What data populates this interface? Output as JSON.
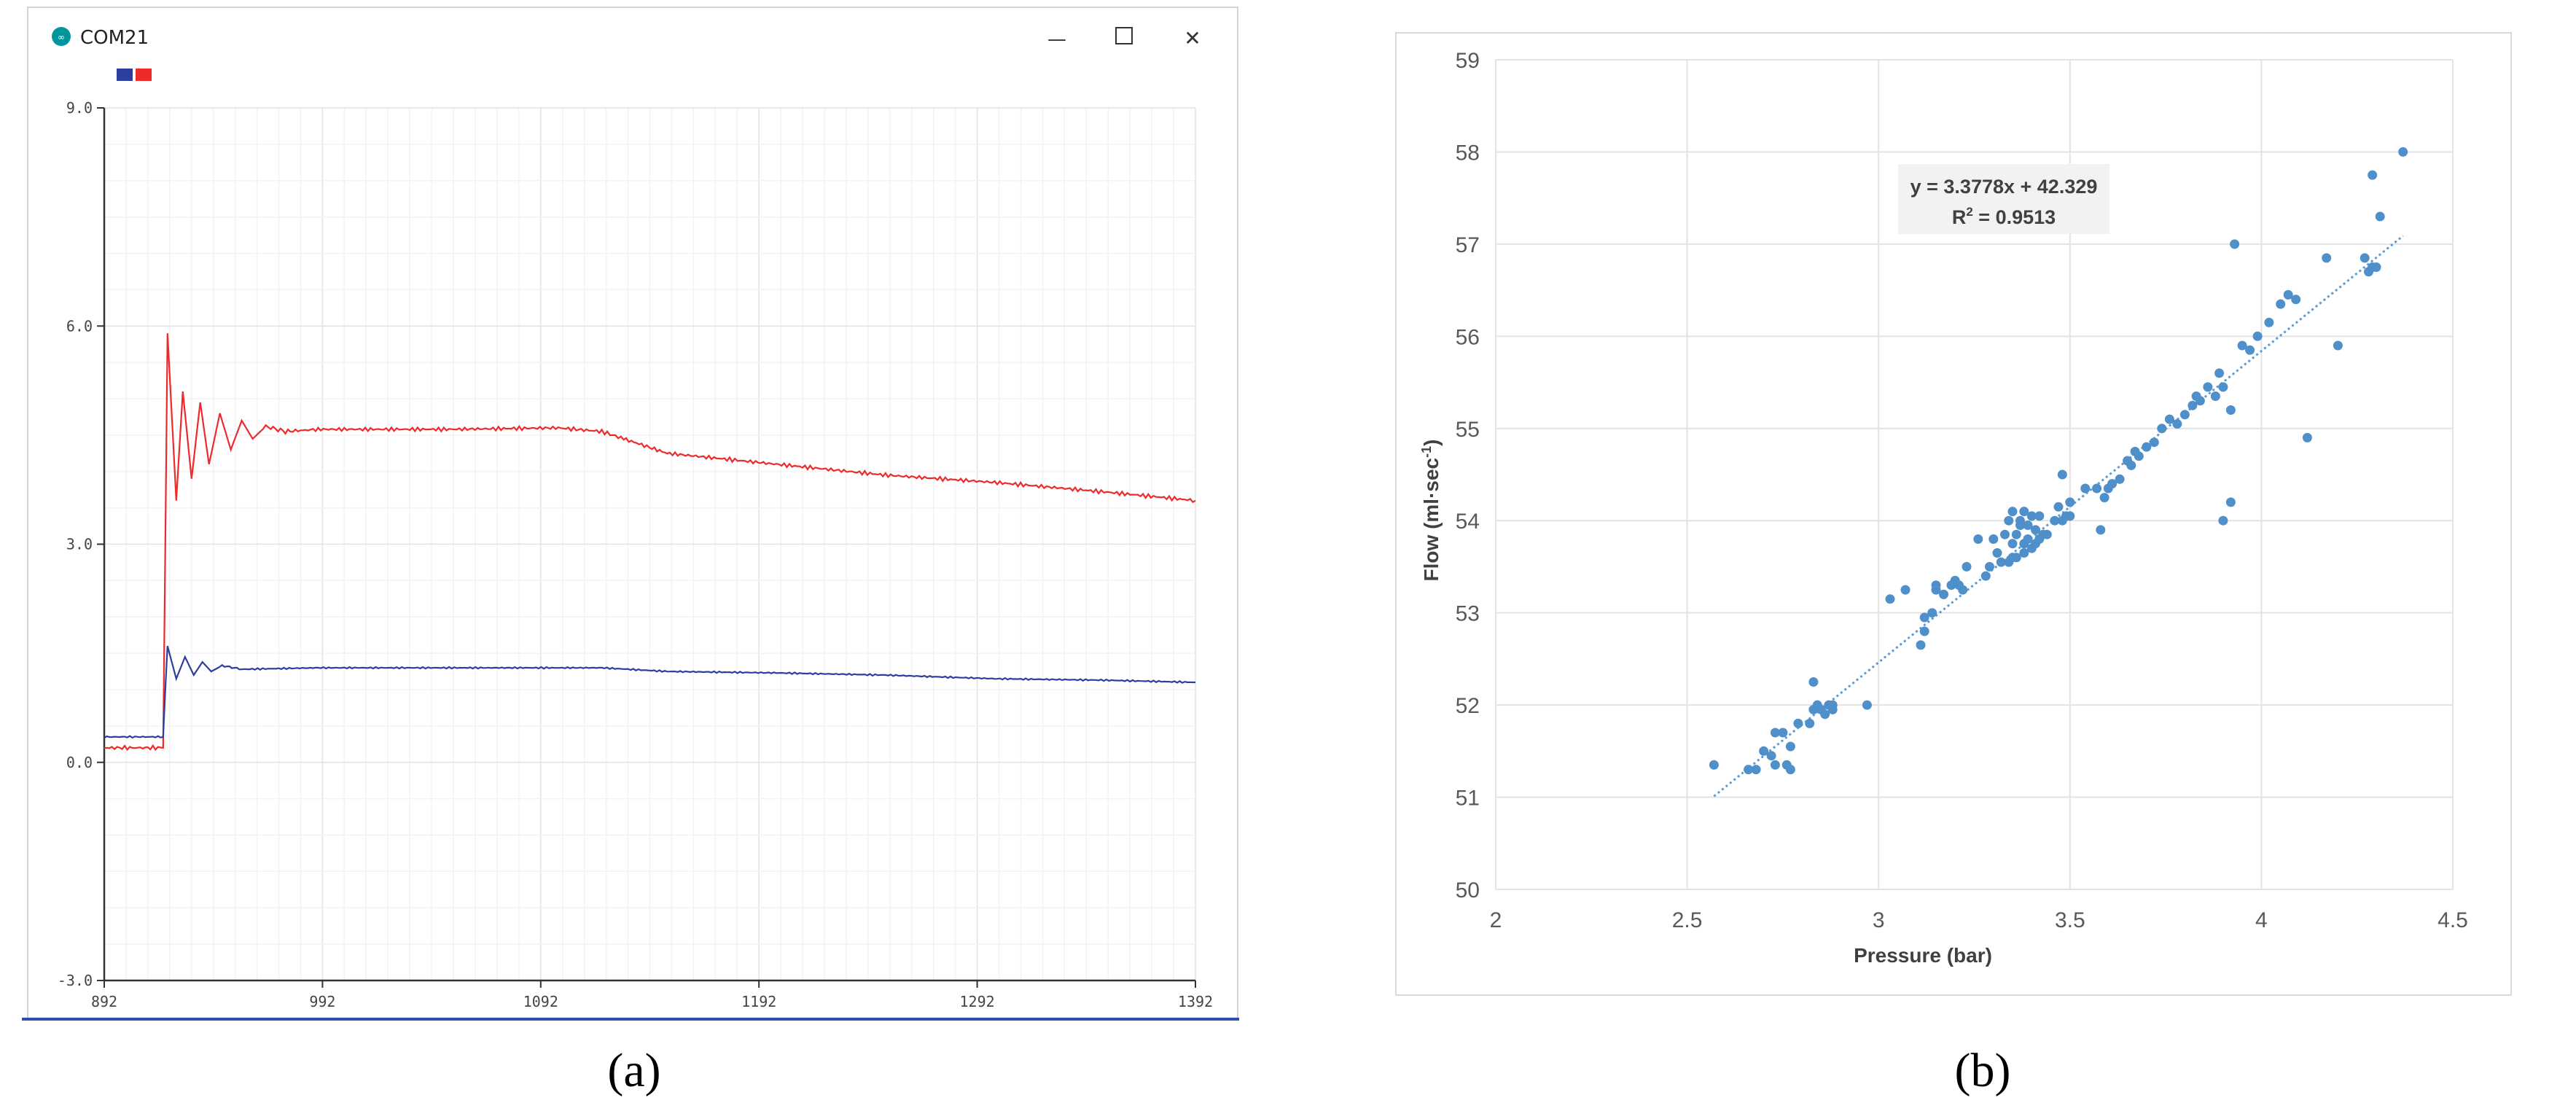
{
  "panel_a": {
    "window_title": "COM21",
    "icon_name": "arduino-logo-icon",
    "controls": {
      "minimize": "—",
      "maximize": "☐",
      "close": "✕"
    },
    "legend_colors": [
      "#2e3e9e",
      "#ee2a2a"
    ],
    "caption": "(a)"
  },
  "panel_b": {
    "caption": "(b)",
    "equation": "y = 3.3778x + 42.329",
    "r2_prefix": "R",
    "r2_sup": "2",
    "r2_value": " = 0.9513"
  },
  "chart_data": [
    {
      "type": "line",
      "title": "",
      "xlabel": "",
      "ylabel": "",
      "xlim": [
        892,
        1392
      ],
      "ylim": [
        -3.0,
        9.0
      ],
      "x_ticks": [
        "892",
        "992",
        "1092",
        "1192",
        "1292",
        "1392"
      ],
      "y_ticks": [
        "-3.0",
        "0.0",
        "3.0",
        "6.0",
        "9.0"
      ],
      "grid": true,
      "legend": "top-left",
      "series": [
        {
          "color": "#ee2a2a",
          "points": [
            [
              892,
              0.2
            ],
            [
              919,
              0.2
            ],
            [
              920,
              3.0
            ],
            [
              921,
              5.9
            ],
            [
              925,
              3.6
            ],
            [
              928,
              5.1
            ],
            [
              932,
              3.9
            ],
            [
              936,
              4.95
            ],
            [
              940,
              4.1
            ],
            [
              945,
              4.8
            ],
            [
              950,
              4.3
            ],
            [
              955,
              4.7
            ],
            [
              960,
              4.45
            ],
            [
              966,
              4.62
            ],
            [
              975,
              4.55
            ],
            [
              990,
              4.58
            ],
            [
              1050,
              4.58
            ],
            [
              1100,
              4.6
            ],
            [
              1120,
              4.55
            ],
            [
              1130,
              4.45
            ],
            [
              1150,
              4.25
            ],
            [
              1200,
              4.1
            ],
            [
              1250,
              3.95
            ],
            [
              1300,
              3.85
            ],
            [
              1350,
              3.72
            ],
            [
              1392,
              3.6
            ]
          ]
        },
        {
          "color": "#2e3e9e",
          "points": [
            [
              892,
              0.35
            ],
            [
              919,
              0.35
            ],
            [
              920,
              1.0
            ],
            [
              921,
              1.6
            ],
            [
              925,
              1.15
            ],
            [
              929,
              1.45
            ],
            [
              933,
              1.2
            ],
            [
              937,
              1.38
            ],
            [
              941,
              1.25
            ],
            [
              946,
              1.33
            ],
            [
              955,
              1.28
            ],
            [
              990,
              1.3
            ],
            [
              1050,
              1.3
            ],
            [
              1120,
              1.3
            ],
            [
              1150,
              1.25
            ],
            [
              1200,
              1.23
            ],
            [
              1250,
              1.2
            ],
            [
              1300,
              1.15
            ],
            [
              1350,
              1.13
            ],
            [
              1392,
              1.1
            ]
          ]
        }
      ]
    },
    {
      "type": "scatter",
      "title": "",
      "xlabel": "Pressure (bar)",
      "ylabel_main": "Flow (ml·sec",
      "ylabel_sup": "-1",
      "ylabel_tail": ")",
      "xlim": [
        2,
        4.5
      ],
      "ylim": [
        50,
        59
      ],
      "x_ticks": [
        "2",
        "2.5",
        "3",
        "3.5",
        "4",
        "4.5"
      ],
      "y_ticks": [
        "50",
        "51",
        "52",
        "53",
        "54",
        "55",
        "56",
        "57",
        "58",
        "59"
      ],
      "grid": true,
      "point_color": "#4f8fca",
      "trendline": {
        "slope": 3.3778,
        "intercept": 42.329,
        "x_range": [
          2.57,
          4.37
        ],
        "color": "#5b9bd5"
      },
      "points": [
        [
          2.57,
          51.35
        ],
        [
          2.66,
          51.3
        ],
        [
          2.68,
          51.3
        ],
        [
          2.7,
          51.5
        ],
        [
          2.72,
          51.45
        ],
        [
          2.73,
          51.35
        ],
        [
          2.73,
          51.7
        ],
        [
          2.75,
          51.7
        ],
        [
          2.76,
          51.35
        ],
        [
          2.77,
          51.3
        ],
        [
          2.77,
          51.55
        ],
        [
          2.79,
          51.8
        ],
        [
          2.82,
          51.8
        ],
        [
          2.83,
          51.95
        ],
        [
          2.83,
          52.25
        ],
        [
          2.84,
          52.0
        ],
        [
          2.85,
          51.95
        ],
        [
          2.86,
          51.9
        ],
        [
          2.87,
          52.0
        ],
        [
          2.88,
          51.95
        ],
        [
          2.88,
          52.0
        ],
        [
          2.97,
          52.0
        ],
        [
          3.03,
          53.15
        ],
        [
          3.07,
          53.25
        ],
        [
          3.11,
          52.65
        ],
        [
          3.12,
          52.8
        ],
        [
          3.12,
          52.95
        ],
        [
          3.14,
          53.0
        ],
        [
          3.15,
          53.25
        ],
        [
          3.15,
          53.3
        ],
        [
          3.17,
          53.2
        ],
        [
          3.19,
          53.3
        ],
        [
          3.2,
          53.35
        ],
        [
          3.21,
          53.3
        ],
        [
          3.22,
          53.25
        ],
        [
          3.23,
          53.5
        ],
        [
          3.26,
          53.8
        ],
        [
          3.28,
          53.4
        ],
        [
          3.29,
          53.5
        ],
        [
          3.3,
          53.8
        ],
        [
          3.31,
          53.65
        ],
        [
          3.32,
          53.55
        ],
        [
          3.33,
          53.85
        ],
        [
          3.34,
          53.55
        ],
        [
          3.34,
          54.0
        ],
        [
          3.35,
          53.6
        ],
        [
          3.35,
          53.75
        ],
        [
          3.35,
          54.1
        ],
        [
          3.36,
          53.6
        ],
        [
          3.36,
          53.85
        ],
        [
          3.37,
          53.95
        ],
        [
          3.37,
          54.0
        ],
        [
          3.38,
          53.65
        ],
        [
          3.38,
          53.75
        ],
        [
          3.38,
          54.1
        ],
        [
          3.39,
          53.8
        ],
        [
          3.39,
          53.95
        ],
        [
          3.4,
          53.7
        ],
        [
          3.4,
          54.05
        ],
        [
          3.41,
          53.75
        ],
        [
          3.41,
          53.9
        ],
        [
          3.42,
          53.8
        ],
        [
          3.42,
          54.05
        ],
        [
          3.43,
          53.85
        ],
        [
          3.44,
          53.85
        ],
        [
          3.46,
          54.0
        ],
        [
          3.47,
          54.15
        ],
        [
          3.48,
          54.0
        ],
        [
          3.48,
          54.5
        ],
        [
          3.49,
          54.05
        ],
        [
          3.5,
          54.05
        ],
        [
          3.5,
          54.2
        ],
        [
          3.54,
          54.35
        ],
        [
          3.57,
          54.35
        ],
        [
          3.58,
          53.9
        ],
        [
          3.59,
          54.25
        ],
        [
          3.6,
          54.35
        ],
        [
          3.61,
          54.4
        ],
        [
          3.63,
          54.45
        ],
        [
          3.65,
          54.65
        ],
        [
          3.66,
          54.6
        ],
        [
          3.67,
          54.75
        ],
        [
          3.68,
          54.7
        ],
        [
          3.7,
          54.8
        ],
        [
          3.72,
          54.85
        ],
        [
          3.74,
          55.0
        ],
        [
          3.76,
          55.1
        ],
        [
          3.78,
          55.05
        ],
        [
          3.8,
          55.15
        ],
        [
          3.82,
          55.25
        ],
        [
          3.83,
          55.35
        ],
        [
          3.84,
          55.3
        ],
        [
          3.86,
          55.45
        ],
        [
          3.88,
          55.35
        ],
        [
          3.89,
          55.6
        ],
        [
          3.9,
          55.45
        ],
        [
          3.9,
          54.0
        ],
        [
          3.92,
          54.2
        ],
        [
          3.92,
          55.2
        ],
        [
          3.93,
          57.0
        ],
        [
          3.95,
          55.9
        ],
        [
          3.97,
          55.85
        ],
        [
          3.99,
          56.0
        ],
        [
          4.02,
          56.15
        ],
        [
          4.05,
          56.35
        ],
        [
          4.07,
          56.45
        ],
        [
          4.09,
          56.4
        ],
        [
          4.12,
          54.9
        ],
        [
          4.17,
          56.85
        ],
        [
          4.2,
          55.9
        ],
        [
          4.27,
          56.85
        ],
        [
          4.28,
          56.7
        ],
        [
          4.29,
          56.75
        ],
        [
          4.29,
          57.75
        ],
        [
          4.3,
          56.75
        ],
        [
          4.31,
          57.3
        ],
        [
          4.37,
          58.0
        ]
      ]
    }
  ]
}
